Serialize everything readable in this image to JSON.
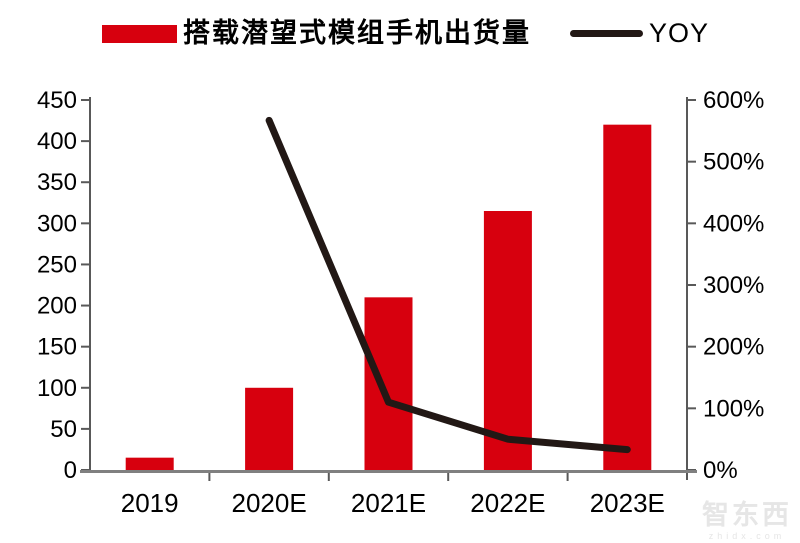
{
  "legend": {
    "series1_label": "搭载潜望式模组手机出货量",
    "series2_label": "YOY"
  },
  "watermark": {
    "name": "智东西",
    "domain": "zhidx.com"
  },
  "colors": {
    "bar": "#d7000e",
    "line": "#221815",
    "axis_side": "#595959",
    "axis_bottom": "#808080",
    "text": "#000000",
    "watermark": "#e6e6e6"
  },
  "chart_data": {
    "type": "bar",
    "title": "",
    "xlabel": "",
    "ylabel": "",
    "categories": [
      "2019",
      "2020E",
      "2021E",
      "2022E",
      "2023E"
    ],
    "series": [
      {
        "name": "搭载潜望式模组手机出货量",
        "type": "bar",
        "axis": "left",
        "values": [
          15,
          100,
          210,
          315,
          420
        ]
      },
      {
        "name": "YOY",
        "type": "line",
        "axis": "right",
        "unit": "%",
        "values_percent": [
          null,
          567,
          110,
          50,
          33
        ]
      }
    ],
    "left_axis": {
      "min": 0,
      "max": 450,
      "step": 50,
      "tick_labels": [
        "0",
        "50",
        "100",
        "150",
        "200",
        "250",
        "300",
        "350",
        "400",
        "450"
      ]
    },
    "right_axis": {
      "min": 0,
      "max": 600,
      "step": 100,
      "tick_labels": [
        "0%",
        "100%",
        "200%",
        "300%",
        "400%",
        "500%",
        "600%"
      ]
    },
    "grid": false,
    "legend_position": "top"
  }
}
